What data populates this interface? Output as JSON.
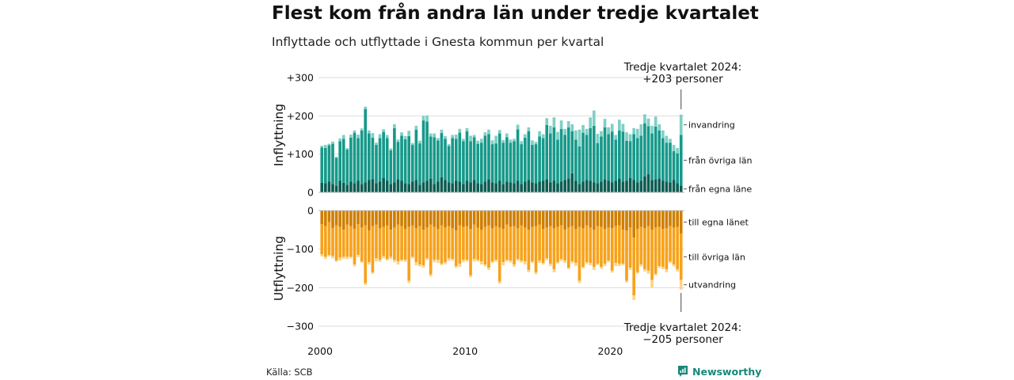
{
  "title": "Flest kom från andra län under tredje kvartalet",
  "subtitle": "Inflyttade och utflyttade i Gnesta kommun per kvartal",
  "source": "Källa: SCB",
  "brand": "Newsworthy",
  "chart_data": {
    "type": "bar",
    "stacked": true,
    "x_start": 2000,
    "x_step": 0.25,
    "xticks": [
      "2000",
      "2010",
      "2020"
    ],
    "panels": [
      {
        "id": "inflyttning",
        "ylabel": "Inflyttning",
        "ylim": [
          0,
          300
        ],
        "yticks": [
          {
            "value": 0,
            "label": "0"
          },
          {
            "value": 100,
            "label": "+100"
          },
          {
            "value": 200,
            "label": "+200"
          },
          {
            "value": 300,
            "label": "+300"
          }
        ],
        "annotation": {
          "line1": "Tredje kvartalet 2024:",
          "line2": "+203 personer"
        },
        "series": [
          {
            "name": "från egna läne",
            "color": "#0d5c52",
            "values": [
              25,
              24,
              28,
              22,
              18,
              30,
              25,
              20,
              28,
              24,
              30,
              22,
              26,
              32,
              35,
              24,
              28,
              38,
              30,
              22,
              26,
              34,
              30,
              24,
              22,
              28,
              32,
              20,
              26,
              30,
              36,
              22,
              28,
              40,
              32,
              26,
              24,
              30,
              28,
              22,
              30,
              26,
              32,
              24,
              22,
              28,
              34,
              26,
              24,
              30,
              22,
              28,
              26,
              24,
              30,
              22,
              28,
              32,
              26,
              24,
              28,
              30,
              34,
              26,
              30,
              24,
              28,
              32,
              36,
              50,
              30,
              22,
              28,
              32,
              30,
              26,
              24,
              28,
              34,
              30,
              26,
              30,
              36,
              28,
              30,
              38,
              32,
              26,
              30,
              42,
              48,
              32,
              34,
              36,
              30,
              28,
              26,
              32,
              24,
              18
            ]
          },
          {
            "name": "från övriga län",
            "color": "#16998a",
            "values": [
              92,
              92,
              95,
              105,
              72,
              104,
              115,
              92,
              115,
              132,
              112,
              140,
              192,
              122,
              108,
              100,
              114,
              120,
              112,
              88,
              142,
              98,
              118,
              115,
              125,
              96,
              132,
              108,
              162,
              155,
              110,
              122,
              108,
              115,
              108,
              95,
              118,
              110,
              128,
              112,
              130,
              108,
              112,
              103,
              108,
              120,
              118,
              100,
              104,
              124,
              108,
              116,
              104,
              110,
              135,
              104,
              115,
              128,
              98,
              102,
              118,
              112,
              142,
              128,
              140,
              114,
              138,
              118,
              134,
              110,
              108,
              98,
              128,
              118,
              138,
              148,
              105,
              118,
              136,
              122,
              133,
              108,
              126,
              131,
              105,
              96,
              120,
              116,
              118,
              138,
              125,
              122,
              138,
              126,
              112,
              102,
              104,
              76,
              78,
              132
            ]
          },
          {
            "name": "invandring",
            "color": "#7fcfc5",
            "values": [
              5,
              8,
              4,
              6,
              3,
              7,
              10,
              4,
              8,
              6,
              9,
              5,
              6,
              8,
              12,
              6,
              10,
              7,
              8,
              5,
              10,
              6,
              9,
              8,
              14,
              5,
              10,
              7,
              12,
              16,
              8,
              10,
              6,
              9,
              7,
              5,
              8,
              11,
              10,
              6,
              8,
              14,
              6,
              8,
              10,
              9,
              12,
              10,
              20,
              9,
              7,
              10,
              8,
              6,
              12,
              8,
              9,
              10,
              12,
              6,
              14,
              10,
              18,
              20,
              26,
              20,
              22,
              16,
              16,
              18,
              24,
              44,
              20,
              16,
              28,
              40,
              24,
              14,
              22,
              18,
              20,
              12,
              28,
              20,
              22,
              18,
              16,
              24,
              30,
              24,
              20,
              20,
              26,
              16,
              20,
              18,
              10,
              16,
              14,
              53
            ]
          }
        ]
      },
      {
        "id": "utflyttning",
        "ylabel": "Utflyttning",
        "ylim": [
          -300,
          0
        ],
        "yticks": [
          {
            "value": 0,
            "label": "0"
          },
          {
            "value": -100,
            "label": "−100"
          },
          {
            "value": -200,
            "label": "−200"
          },
          {
            "value": -300,
            "label": "−300"
          }
        ],
        "annotation": {
          "line1": "Tredje kvartalet 2024:",
          "line2": "−205 personer"
        },
        "series": [
          {
            "name": "till egna länet",
            "color": "#cf7f00",
            "values": [
              -35,
              -40,
              -30,
              -45,
              -38,
              -42,
              -50,
              -36,
              -40,
              -48,
              -35,
              -44,
              -38,
              -52,
              -40,
              -36,
              -46,
              -42,
              -38,
              -50,
              -44,
              -36,
              -40,
              -48,
              -42,
              -38,
              -46,
              -40,
              -50,
              -44,
              -36,
              -42,
              -48,
              -38,
              -44,
              -40,
              -46,
              -52,
              -38,
              -42,
              -40,
              -48,
              -36,
              -44,
              -50,
              -42,
              -38,
              -46,
              -40,
              -44,
              -48,
              -36,
              -42,
              -40,
              -46,
              -38,
              -44,
              -50,
              -42,
              -40,
              -36,
              -48,
              -44,
              -40,
              -46,
              -42,
              -38,
              -50,
              -44,
              -40,
              -48,
              -42,
              -46,
              -38,
              -44,
              -50,
              -40,
              -42,
              -48,
              -44,
              -46,
              -40,
              -38,
              -50,
              -52,
              -44,
              -70,
              -48,
              -42,
              -46,
              -40,
              -50,
              -44,
              -42,
              -48,
              -46,
              -40,
              -44,
              -42,
              -60
            ]
          },
          {
            "name": "till övriga län",
            "color": "#f7a21b",
            "values": [
              -78,
              -80,
              -85,
              -73,
              -92,
              -80,
              -70,
              -84,
              -80,
              -92,
              -80,
              -88,
              -150,
              -82,
              -120,
              -88,
              -82,
              -76,
              -88,
              -70,
              -84,
              -96,
              -88,
              -80,
              -140,
              -82,
              -88,
              -100,
              -92,
              -80,
              -130,
              -86,
              -80,
              -100,
              -90,
              -84,
              -80,
              -92,
              -100,
              -86,
              -88,
              -120,
              -90,
              -84,
              -82,
              -98,
              -110,
              -86,
              -88,
              -140,
              -86,
              -92,
              -88,
              -100,
              -80,
              -92,
              -88,
              -104,
              -90,
              -120,
              -94,
              -88,
              -80,
              -98,
              -106,
              -92,
              -88,
              -80,
              -104,
              -92,
              -88,
              -140,
              -100,
              -96,
              -92,
              -96,
              -98,
              -104,
              -90,
              -86,
              -110,
              -96,
              -100,
              -88,
              -130,
              -104,
              -150,
              -112,
              -98,
              -106,
              -116,
              -130,
              -120,
              -102,
              -98,
              -106,
              -92,
              -96,
              -110,
              -120
            ]
          },
          {
            "name": "utvandring",
            "color": "#fbd38a",
            "values": [
              -6,
              -5,
              -4,
              -6,
              -3,
              -8,
              -5,
              -6,
              -4,
              -5,
              -6,
              -4,
              -5,
              -6,
              -4,
              -8,
              -5,
              -6,
              -4,
              -5,
              -6,
              -8,
              -4,
              -5,
              -6,
              -4,
              -8,
              -5,
              -6,
              -4,
              -5,
              -6,
              -8,
              -4,
              -5,
              -6,
              -4,
              -5,
              -8,
              -6,
              -4,
              -5,
              -6,
              -4,
              -8,
              -5,
              -6,
              -4,
              -5,
              -6,
              -8,
              -4,
              -5,
              -6,
              -4,
              -5,
              -8,
              -6,
              -4,
              -5,
              -6,
              -4,
              -5,
              -6,
              -8,
              -4,
              -5,
              -6,
              -4,
              -5,
              -8,
              -6,
              -4,
              -5,
              -6,
              -8,
              -4,
              -5,
              -6,
              -4,
              -5,
              -8,
              -6,
              -4,
              -5,
              -6,
              -12,
              -4,
              -5,
              -6,
              -8,
              -20,
              -4,
              -5,
              -6,
              -8,
              -4,
              -5,
              -6,
              -25
            ]
          }
        ]
      }
    ]
  }
}
